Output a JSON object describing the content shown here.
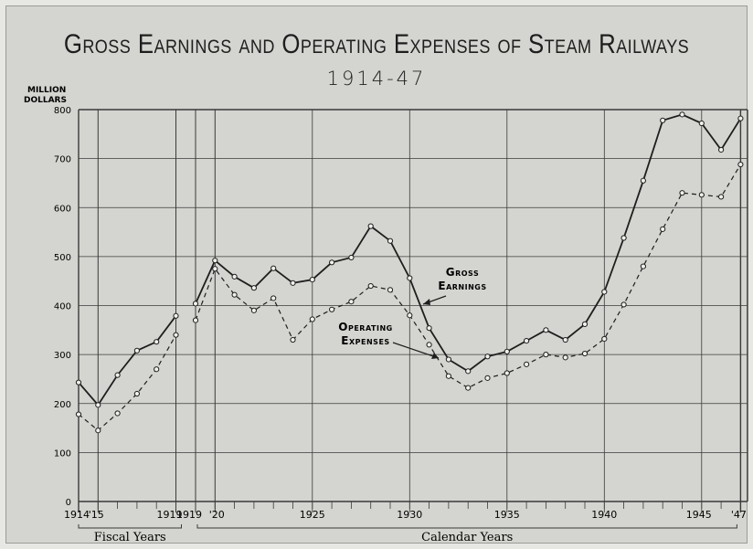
{
  "chart_data": {
    "type": "line",
    "title": "Gross Earnings and Operating Expenses of Steam Railways",
    "subtitle": "1914-47",
    "ylabel_line1": "MILLION",
    "ylabel_line2": "DOLLARS",
    "ylim": [
      0,
      800
    ],
    "yticks": [
      0,
      100,
      200,
      300,
      400,
      500,
      600,
      700,
      800
    ],
    "grid": true,
    "x_tick_labels": [
      "1914",
      "'15",
      "1919",
      "1919",
      "'20",
      "1925",
      "1930",
      "1935",
      "1940",
      "1945",
      "'47"
    ],
    "group_labels": [
      "Fiscal Years",
      "Calendar Years"
    ],
    "annotations": [
      "Gross",
      "Earnings",
      "Operating",
      "Expenses"
    ],
    "fiscal_years": {
      "x": [
        1914,
        1915,
        1916,
        1917,
        1918,
        1919
      ],
      "series": [
        {
          "name": "Gross Earnings",
          "values": [
            243,
            197,
            258,
            308,
            326,
            379
          ]
        },
        {
          "name": "Operating Expenses",
          "values": [
            178,
            145,
            180,
            220,
            270,
            340
          ]
        }
      ]
    },
    "calendar_years": {
      "x": [
        1919,
        1920,
        1921,
        1922,
        1923,
        1924,
        1925,
        1926,
        1927,
        1928,
        1929,
        1930,
        1931,
        1932,
        1933,
        1934,
        1935,
        1936,
        1937,
        1938,
        1939,
        1940,
        1941,
        1942,
        1943,
        1944,
        1945,
        1946,
        1947
      ],
      "series": [
        {
          "name": "Gross Earnings",
          "values": [
            404,
            492,
            459,
            436,
            476,
            446,
            453,
            488,
            498,
            562,
            532,
            456,
            354,
            290,
            266,
            296,
            306,
            328,
            350,
            330,
            362,
            428,
            538,
            655,
            778,
            790,
            772,
            718,
            782
          ]
        },
        {
          "name": "Operating Expenses",
          "values": [
            370,
            475,
            422,
            390,
            415,
            330,
            372,
            392,
            408,
            440,
            432,
            380,
            320,
            256,
            232,
            252,
            262,
            280,
            300,
            294,
            302,
            332,
            402,
            480,
            556,
            630,
            626,
            622,
            688
          ]
        }
      ]
    }
  }
}
